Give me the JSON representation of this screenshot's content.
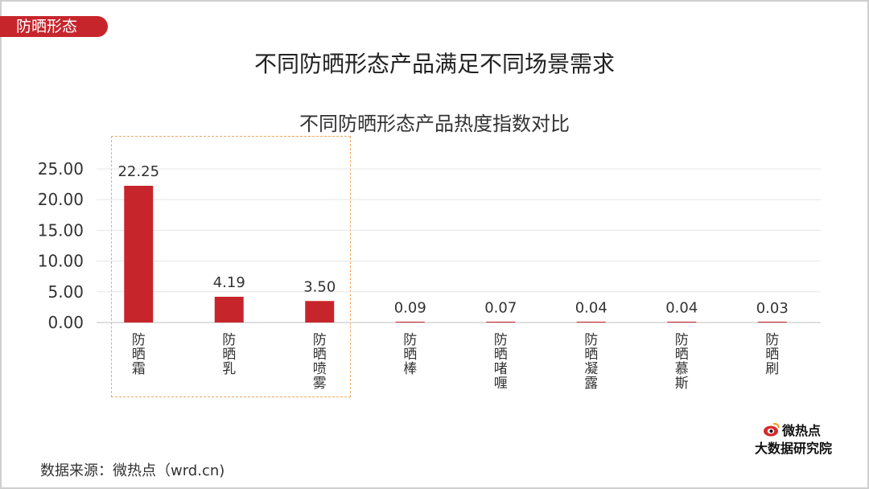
{
  "tag": "防晒形态",
  "main_title": "不同防晒形态产品满足不同场景需求",
  "source": "数据来源：微热点（wrd.cn)",
  "logo": {
    "line1": "微热点",
    "line2": "大数据研究院",
    "icon": "weibo-eye-icon"
  },
  "colors": {
    "accent": "#c7252c",
    "highlight_border": "#f0a868",
    "grid": "#e6e6e6"
  },
  "chart_data": {
    "type": "bar",
    "title": "不同防晒形态产品热度指数对比",
    "categories": [
      "防晒霜",
      "防晒乳",
      "防晒喷雾",
      "防晒棒",
      "防晒啫喱",
      "防晒凝露",
      "防晒慕斯",
      "防晒刷"
    ],
    "values": [
      22.25,
      4.19,
      3.5,
      0.09,
      0.07,
      0.04,
      0.04,
      0.03
    ],
    "value_labels": [
      "22.25",
      "4.19",
      "3.50",
      "0.09",
      "0.07",
      "0.04",
      "0.04",
      "0.03"
    ],
    "yticks": [
      "0.00",
      "5.00",
      "10.00",
      "15.00",
      "20.00",
      "25.00"
    ],
    "ylim": [
      0,
      25
    ],
    "grid": true,
    "highlighted_categories": [
      "防晒霜",
      "防晒乳",
      "防晒喷雾"
    ],
    "bar_color": "#c7252c"
  }
}
